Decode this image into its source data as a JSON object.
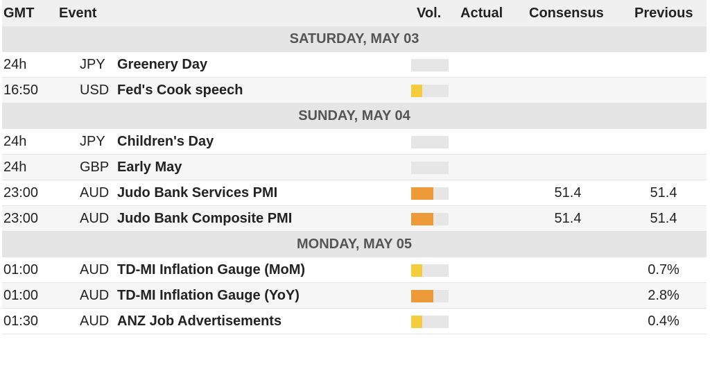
{
  "header": {
    "gmt": "GMT",
    "event": "Event",
    "vol": "Vol.",
    "actual": "Actual",
    "consensus": "Consensus",
    "previous": "Previous"
  },
  "colors": {
    "low": "#f5cd3a",
    "medium": "#ef9a38",
    "empty": "#e6e6e6"
  },
  "days": [
    {
      "label": "SATURDAY, MAY 03",
      "events": [
        {
          "time": "24h",
          "currency": "JPY",
          "name": "Greenery Day",
          "volatility": 0,
          "actual": "",
          "consensus": "",
          "previous": ""
        },
        {
          "time": "16:50",
          "currency": "USD",
          "name": "Fed's Cook speech",
          "volatility": 1,
          "actual": "",
          "consensus": "",
          "previous": ""
        }
      ]
    },
    {
      "label": "SUNDAY, MAY 04",
      "events": [
        {
          "time": "24h",
          "currency": "JPY",
          "name": "Children's Day",
          "volatility": 0,
          "actual": "",
          "consensus": "",
          "previous": ""
        },
        {
          "time": "24h",
          "currency": "GBP",
          "name": "Early May",
          "volatility": 0,
          "actual": "",
          "consensus": "",
          "previous": ""
        },
        {
          "time": "23:00",
          "currency": "AUD",
          "name": "Judo Bank Services PMI",
          "volatility": 2,
          "actual": "",
          "consensus": "51.4",
          "previous": "51.4"
        },
        {
          "time": "23:00",
          "currency": "AUD",
          "name": "Judo Bank Composite PMI",
          "volatility": 2,
          "actual": "",
          "consensus": "51.4",
          "previous": "51.4"
        }
      ]
    },
    {
      "label": "MONDAY, MAY 05",
      "events": [
        {
          "time": "01:00",
          "currency": "AUD",
          "name": "TD-MI Inflation Gauge (MoM)",
          "volatility": 1,
          "actual": "",
          "consensus": "",
          "previous": "0.7%"
        },
        {
          "time": "01:00",
          "currency": "AUD",
          "name": "TD-MI Inflation Gauge (YoY)",
          "volatility": 2,
          "actual": "",
          "consensus": "",
          "previous": "2.8%"
        },
        {
          "time": "01:30",
          "currency": "AUD",
          "name": "ANZ Job Advertisements",
          "volatility": 1,
          "actual": "",
          "consensus": "",
          "previous": "0.4%"
        }
      ]
    }
  ]
}
